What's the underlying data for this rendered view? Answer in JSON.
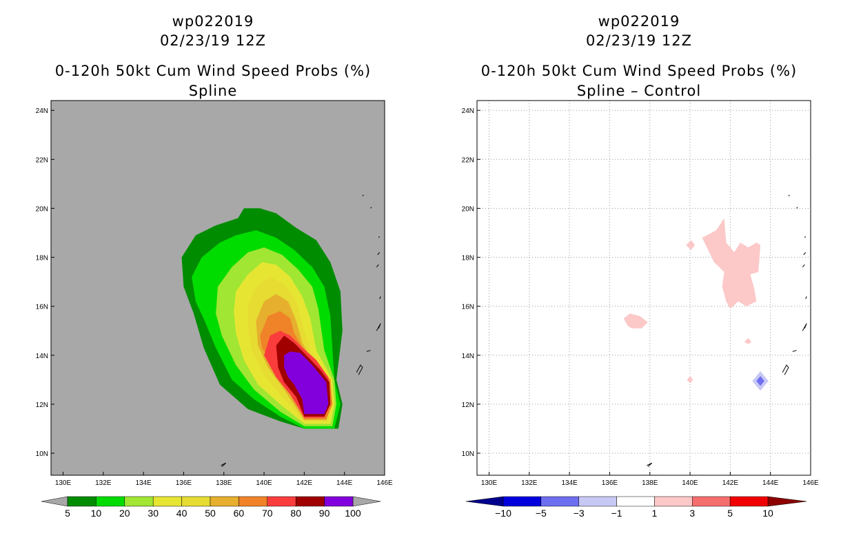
{
  "chart_data": [
    {
      "type": "contour-map",
      "storm_id": "wp022019",
      "datetime": "02/23/19 12Z",
      "title": "0-120h 50kt Cum Wind Speed Probs (%)",
      "subtitle": "Spline",
      "background": "#a8a8a8",
      "grid": false,
      "xlim": [
        129.4,
        146
      ],
      "ylim": [
        9.1,
        24.4
      ],
      "x_ticks": [
        130,
        132,
        134,
        136,
        138,
        140,
        142,
        144,
        146
      ],
      "x_tick_labels": [
        "130E",
        "132E",
        "134E",
        "136E",
        "138E",
        "140E",
        "142E",
        "144E",
        "146E"
      ],
      "y_ticks": [
        10,
        12,
        14,
        16,
        18,
        20,
        22,
        24
      ],
      "y_tick_labels": [
        "10N",
        "12N",
        "14N",
        "16N",
        "18N",
        "20N",
        "22N",
        "24N"
      ],
      "colorbar": {
        "labels": [
          "5",
          "10",
          "20",
          "30",
          "40",
          "50",
          "60",
          "70",
          "80",
          "90",
          "100"
        ],
        "colors": [
          "#008c00",
          "#00dc00",
          "#a0e632",
          "#e6e632",
          "#e6dc32",
          "#e6af2d",
          "#f08228",
          "#fa3c3c",
          "#a00000",
          "#8200dc"
        ],
        "below_color": "#a8a8a8",
        "above_color": "#a8a8a8"
      },
      "levels": [
        {
          "min": 5,
          "color": "#008c00",
          "polygon": [
            [
              135.9,
              18.0
            ],
            [
              136.6,
              18.9
            ],
            [
              137.6,
              19.3
            ],
            [
              138.7,
              19.6
            ],
            [
              139.0,
              20.0
            ],
            [
              139.8,
              20.0
            ],
            [
              140.6,
              19.8
            ],
            [
              141.6,
              19.2
            ],
            [
              142.6,
              18.7
            ],
            [
              143.3,
              17.8
            ],
            [
              143.8,
              16.6
            ],
            [
              143.9,
              15.0
            ],
            [
              143.6,
              13.0
            ],
            [
              143.9,
              12.0
            ],
            [
              143.7,
              11.0
            ],
            [
              142.0,
              11.0
            ],
            [
              140.8,
              11.3
            ],
            [
              139.2,
              11.8
            ],
            [
              137.8,
              12.8
            ],
            [
              137.0,
              14.3
            ],
            [
              136.5,
              15.7
            ],
            [
              136.0,
              16.8
            ]
          ]
        },
        {
          "min": 10,
          "color": "#00dc00",
          "polygon": [
            [
              136.4,
              17.2
            ],
            [
              136.9,
              18.0
            ],
            [
              137.8,
              18.6
            ],
            [
              138.6,
              18.9
            ],
            [
              139.6,
              19.1
            ],
            [
              140.6,
              18.8
            ],
            [
              141.5,
              18.3
            ],
            [
              142.4,
              17.6
            ],
            [
              143.0,
              16.8
            ],
            [
              143.3,
              15.6
            ],
            [
              143.5,
              13.0
            ],
            [
              143.8,
              12.0
            ],
            [
              143.5,
              11.0
            ],
            [
              142.0,
              11.0
            ],
            [
              140.8,
              11.5
            ],
            [
              139.5,
              12.2
            ],
            [
              138.4,
              13.0
            ],
            [
              137.6,
              14.3
            ],
            [
              137.1,
              15.3
            ],
            [
              136.6,
              16.2
            ]
          ]
        },
        {
          "min": 20,
          "color": "#a0e632",
          "polygon": [
            [
              137.7,
              16.8
            ],
            [
              138.4,
              17.6
            ],
            [
              139.2,
              18.2
            ],
            [
              140.0,
              18.4
            ],
            [
              140.9,
              18.1
            ],
            [
              141.7,
              17.5
            ],
            [
              142.4,
              16.8
            ],
            [
              142.7,
              15.9
            ],
            [
              143.0,
              14.2
            ],
            [
              143.5,
              13.0
            ],
            [
              143.6,
              12.0
            ],
            [
              143.4,
              11.1
            ],
            [
              142.0,
              11.1
            ],
            [
              140.8,
              11.7
            ],
            [
              139.5,
              12.6
            ],
            [
              138.6,
              13.6
            ],
            [
              137.9,
              14.8
            ],
            [
              137.6,
              15.7
            ]
          ]
        },
        {
          "min": 30,
          "color": "#e6e632",
          "polygon": [
            [
              138.6,
              16.6
            ],
            [
              139.2,
              17.3
            ],
            [
              139.9,
              17.8
            ],
            [
              140.6,
              17.7
            ],
            [
              141.3,
              17.2
            ],
            [
              141.9,
              16.4
            ],
            [
              142.3,
              15.5
            ],
            [
              142.6,
              14.2
            ],
            [
              143.4,
              13.0
            ],
            [
              143.5,
              12.0
            ],
            [
              143.3,
              11.2
            ],
            [
              142.0,
              11.2
            ],
            [
              140.8,
              12.0
            ],
            [
              139.7,
              12.8
            ],
            [
              139.0,
              13.8
            ],
            [
              138.6,
              14.9
            ],
            [
              138.5,
              15.8
            ]
          ]
        },
        {
          "min": 40,
          "color": "#e6dc32",
          "polygon": [
            [
              139.2,
              16.0
            ],
            [
              139.6,
              16.8
            ],
            [
              140.3,
              17.2
            ],
            [
              141.0,
              16.9
            ],
            [
              141.6,
              16.2
            ],
            [
              141.9,
              15.3
            ],
            [
              142.3,
              14.2
            ],
            [
              143.3,
              13.0
            ],
            [
              143.4,
              12.0
            ],
            [
              143.2,
              11.3
            ],
            [
              142.0,
              11.3
            ],
            [
              140.9,
              12.3
            ],
            [
              140.0,
              13.2
            ],
            [
              139.4,
              14.2
            ],
            [
              139.2,
              15.1
            ]
          ]
        },
        {
          "min": 50,
          "color": "#e6af2d",
          "polygon": [
            [
              139.6,
              15.4
            ],
            [
              140.0,
              16.2
            ],
            [
              140.6,
              16.5
            ],
            [
              141.2,
              16.2
            ],
            [
              141.6,
              15.4
            ],
            [
              141.9,
              14.5
            ],
            [
              142.4,
              13.8
            ],
            [
              143.2,
              13.0
            ],
            [
              143.4,
              12.0
            ],
            [
              143.1,
              11.35
            ],
            [
              142.0,
              11.35
            ],
            [
              141.0,
              12.6
            ],
            [
              140.2,
              13.5
            ],
            [
              139.7,
              14.4
            ]
          ]
        },
        {
          "min": 60,
          "color": "#f08228",
          "polygon": [
            [
              139.8,
              14.8
            ],
            [
              140.2,
              15.6
            ],
            [
              140.8,
              15.8
            ],
            [
              141.3,
              15.5
            ],
            [
              141.5,
              14.9
            ],
            [
              142.0,
              14.2
            ],
            [
              142.8,
              13.4
            ],
            [
              143.3,
              13.0
            ],
            [
              143.4,
              12.0
            ],
            [
              143.1,
              11.4
            ],
            [
              142.0,
              11.4
            ],
            [
              141.1,
              12.9
            ],
            [
              140.4,
              13.7
            ],
            [
              139.9,
              14.3
            ]
          ]
        },
        {
          "min": 70,
          "color": "#fa3c3c",
          "polygon": [
            [
              140.0,
              14.0
            ],
            [
              140.3,
              14.8
            ],
            [
              140.8,
              15.0
            ],
            [
              141.3,
              14.8
            ],
            [
              141.8,
              14.4
            ],
            [
              142.6,
              13.8
            ],
            [
              143.2,
              13.1
            ],
            [
              143.3,
              12.0
            ],
            [
              143.0,
              11.45
            ],
            [
              142.0,
              11.45
            ],
            [
              141.3,
              12.4
            ],
            [
              140.6,
              13.1
            ]
          ]
        },
        {
          "min": 80,
          "color": "#a00000",
          "polygon": [
            [
              140.6,
              14.4
            ],
            [
              141.0,
              14.8
            ],
            [
              141.5,
              14.5
            ],
            [
              142.1,
              14.0
            ],
            [
              142.8,
              13.4
            ],
            [
              143.25,
              12.9
            ],
            [
              143.3,
              12.0
            ],
            [
              143.0,
              11.5
            ],
            [
              142.0,
              11.5
            ],
            [
              141.6,
              12.3
            ],
            [
              141.0,
              12.9
            ],
            [
              140.7,
              13.5
            ]
          ]
        },
        {
          "min": 90,
          "color": "#8200dc",
          "polygon": [
            [
              141.0,
              14.0
            ],
            [
              141.3,
              14.15
            ],
            [
              141.8,
              14.1
            ],
            [
              142.4,
              13.6
            ],
            [
              143.1,
              12.9
            ],
            [
              143.2,
              12.0
            ],
            [
              143.0,
              11.6
            ],
            [
              142.0,
              11.6
            ],
            [
              141.9,
              12.2
            ],
            [
              141.5,
              12.8
            ],
            [
              141.2,
              13.1
            ],
            [
              141.0,
              13.5
            ]
          ]
        }
      ]
    },
    {
      "type": "contour-map",
      "storm_id": "wp022019",
      "datetime": "02/23/19 12Z",
      "title": "0-120h 50kt Cum Wind Speed Probs (%)",
      "subtitle": "Spline – Control",
      "background": "#ffffff",
      "grid": true,
      "xlim": [
        129.4,
        146
      ],
      "ylim": [
        9.1,
        24.4
      ],
      "x_ticks": [
        130,
        132,
        134,
        136,
        138,
        140,
        142,
        144,
        146
      ],
      "x_tick_labels": [
        "130E",
        "132E",
        "134E",
        "136E",
        "138E",
        "140E",
        "142E",
        "144E",
        "146E"
      ],
      "y_ticks": [
        10,
        12,
        14,
        16,
        18,
        20,
        22,
        24
      ],
      "y_tick_labels": [
        "10N",
        "12N",
        "14N",
        "16N",
        "18N",
        "20N",
        "22N",
        "24N"
      ],
      "colorbar": {
        "labels": [
          "−10",
          "−5",
          "−3",
          "−1",
          "1",
          "3",
          "5",
          "10"
        ],
        "colors": [
          "#0000dc",
          "#6e6ef0",
          "#c8c8f5",
          "#ffffff",
          "#fcc8c8",
          "#f56e6e",
          "#f00000"
        ],
        "below_color": "#00008c",
        "above_color": "#8c0000"
      },
      "regions": [
        {
          "value_range": "1 to 3",
          "color": "#fcc8c8",
          "polygon": [
            [
              140.6,
              18.8
            ],
            [
              141.3,
              19.1
            ],
            [
              141.7,
              19.6
            ],
            [
              141.8,
              18.6
            ],
            [
              142.2,
              18.2
            ],
            [
              142.5,
              18.6
            ],
            [
              142.9,
              18.4
            ],
            [
              143.3,
              18.6
            ],
            [
              143.5,
              18.5
            ],
            [
              143.4,
              17.4
            ],
            [
              143.0,
              17.3
            ],
            [
              143.2,
              16.7
            ],
            [
              143.3,
              16.2
            ],
            [
              142.8,
              16.0
            ],
            [
              142.4,
              16.2
            ],
            [
              142.0,
              15.9
            ],
            [
              141.8,
              16.2
            ],
            [
              141.6,
              16.8
            ],
            [
              141.7,
              17.4
            ],
            [
              141.2,
              17.8
            ]
          ]
        },
        {
          "value_range": "1 to 3",
          "color": "#fcc8c8",
          "polygon": [
            [
              139.8,
              18.5
            ],
            [
              140.05,
              18.7
            ],
            [
              140.25,
              18.5
            ],
            [
              140.05,
              18.3
            ]
          ]
        },
        {
          "value_range": "1 to 3",
          "color": "#fcc8c8",
          "polygon": [
            [
              136.7,
              15.5
            ],
            [
              137.0,
              15.7
            ],
            [
              137.5,
              15.6
            ],
            [
              137.9,
              15.35
            ],
            [
              137.6,
              15.1
            ],
            [
              137.1,
              15.1
            ],
            [
              136.9,
              15.2
            ]
          ]
        },
        {
          "value_range": "1 to 3",
          "color": "#fcc8c8",
          "polygon": [
            [
              142.7,
              14.55
            ],
            [
              142.9,
              14.7
            ],
            [
              143.05,
              14.55
            ],
            [
              142.9,
              14.45
            ]
          ]
        },
        {
          "value_range": "1 to 3",
          "color": "#fcc8c8",
          "polygon": [
            [
              139.85,
              13.0
            ],
            [
              140.0,
              13.15
            ],
            [
              140.15,
              13.0
            ],
            [
              140.0,
              12.85
            ]
          ]
        },
        {
          "value_range": "-3 to -1",
          "color": "#c8c8f5",
          "polygon": [
            [
              143.1,
              12.95
            ],
            [
              143.5,
              13.35
            ],
            [
              143.9,
              12.95
            ],
            [
              143.5,
              12.55
            ]
          ]
        },
        {
          "value_range": "-5 to -3",
          "color": "#6e6ef0",
          "polygon": [
            [
              143.3,
              12.95
            ],
            [
              143.5,
              13.15
            ],
            [
              143.7,
              12.95
            ],
            [
              143.5,
              12.75
            ]
          ]
        }
      ]
    }
  ]
}
